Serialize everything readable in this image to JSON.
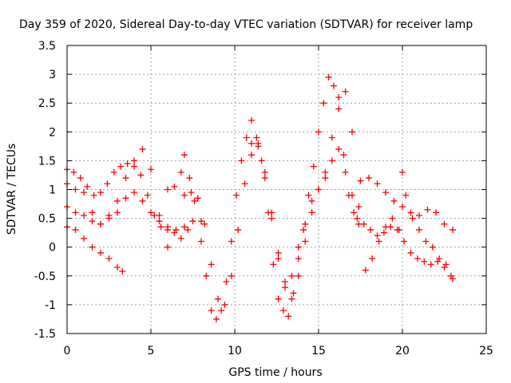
{
  "chart_data": {
    "type": "scatter",
    "title": "Day 359 of 2020, Sidereal Day-to-day VTEC variation (SDTVAR) for receiver lamp",
    "xlabel": "GPS time / hours",
    "ylabel": "SDTVAR / TECUs",
    "xlim": [
      0,
      25
    ],
    "ylim": [
      -1.5,
      3.5
    ],
    "x_ticks": [
      0,
      5,
      10,
      15,
      20,
      25
    ],
    "y_ticks": [
      -1.5,
      -1,
      -0.5,
      0,
      0.5,
      1,
      1.5,
      2,
      2.5,
      3,
      3.5
    ],
    "x_tick_labels": [
      "0",
      "5",
      "10",
      "15",
      "20",
      "25"
    ],
    "y_tick_labels": [
      "-1.5",
      "-1",
      "-0.5",
      "0",
      "0.5",
      "1",
      "1.5",
      "2",
      "2.5",
      "3",
      "3.5"
    ],
    "grid": true,
    "marker": "+",
    "color": "#ff0000",
    "series": [
      {
        "x": [
          0.0,
          0.4,
          0.8,
          1.2,
          1.6,
          2.0,
          2.4,
          2.8,
          3.2,
          3.6,
          4.0,
          4.4,
          4.8,
          5.2,
          5.6,
          6.0,
          6.4,
          6.8,
          7.2
        ],
        "y": [
          1.35,
          1.3,
          1.2,
          1.05,
          0.9,
          0.95,
          1.1,
          1.3,
          1.4,
          1.45,
          1.5,
          1.25,
          0.9,
          0.55,
          0.35,
          0.3,
          0.25,
          0.15,
          0.3
        ]
      },
      {
        "x": [
          0.0,
          0.5,
          1.0,
          1.5,
          2.0,
          2.5,
          3.0,
          3.5,
          4.0,
          4.5,
          5.0,
          5.5,
          6.0
        ],
        "y": [
          1.1,
          1.0,
          0.95,
          0.6,
          0.4,
          0.55,
          0.8,
          1.2,
          1.4,
          1.7,
          1.35,
          0.55,
          0.0
        ]
      },
      {
        "x": [
          0.0,
          0.5,
          1.0,
          1.5,
          2.0,
          2.5,
          3.0,
          3.3
        ],
        "y": [
          0.35,
          0.3,
          0.15,
          0.0,
          -0.1,
          -0.2,
          -0.35,
          -0.42
        ]
      },
      {
        "x": [
          0.0,
          0.5,
          1.0,
          1.5,
          2.0,
          2.5,
          3.0,
          3.5,
          4.0,
          4.5,
          5.0,
          5.5,
          6.0,
          6.5,
          7.0,
          7.5,
          8.0
        ],
        "y": [
          0.7,
          0.6,
          0.55,
          0.45,
          0.4,
          0.5,
          0.6,
          0.85,
          0.95,
          0.8,
          0.6,
          0.45,
          0.35,
          0.3,
          0.35,
          0.45,
          0.45
        ]
      },
      {
        "x": [
          6.0,
          6.4,
          6.8,
          7.0,
          7.3,
          7.6,
          8.0,
          8.3,
          8.6,
          8.9,
          9.2,
          9.5,
          9.8,
          10.1,
          10.4,
          10.7,
          11.0,
          11.3,
          11.6,
          12.0,
          12.3,
          12.6,
          12.9,
          13.2,
          13.5,
          13.8,
          14.1,
          14.4,
          14.7,
          15.0,
          15.3,
          15.6,
          15.9,
          16.2,
          16.5,
          16.8,
          17.1,
          17.4
        ],
        "y": [
          1.0,
          1.05,
          1.3,
          1.6,
          1.2,
          0.8,
          0.1,
          -0.5,
          -1.1,
          -1.25,
          -1.1,
          -0.6,
          0.1,
          0.9,
          1.5,
          1.9,
          2.2,
          1.9,
          1.5,
          0.6,
          -0.3,
          -0.9,
          -1.1,
          -1.2,
          -0.8,
          -0.2,
          0.3,
          0.9,
          1.4,
          2.0,
          2.5,
          2.95,
          2.8,
          2.4,
          1.6,
          0.9,
          0.6,
          0.4
        ]
      },
      {
        "x": [
          7.0,
          7.4,
          7.8,
          8.2,
          8.6,
          9.0,
          9.4,
          9.8,
          10.2,
          10.6,
          11.0,
          11.4,
          11.8,
          12.2,
          12.6,
          13.0,
          13.4,
          13.8,
          14.2,
          14.6,
          15.0,
          15.4,
          15.8,
          16.2,
          16.6,
          17.0,
          17.4
        ],
        "y": [
          0.9,
          0.95,
          0.85,
          0.4,
          -0.3,
          -0.9,
          -1.0,
          -0.5,
          0.3,
          1.1,
          1.6,
          1.8,
          1.3,
          0.6,
          -0.1,
          -0.6,
          -0.5,
          0.0,
          0.4,
          0.8,
          1.0,
          1.2,
          1.5,
          1.7,
          1.3,
          0.9,
          0.7
        ]
      },
      {
        "x": [
          11.0,
          11.4,
          11.8,
          12.2,
          12.6,
          13.0,
          13.4,
          13.8,
          14.2,
          14.6,
          15.0,
          15.4,
          15.8,
          16.2,
          16.6,
          17.0
        ],
        "y": [
          1.8,
          1.75,
          1.2,
          0.5,
          -0.2,
          -0.7,
          -0.9,
          -0.5,
          0.1,
          0.6,
          1.0,
          1.3,
          1.9,
          2.6,
          2.7,
          2.0
        ]
      },
      {
        "x": [
          17.5,
          18.0,
          18.5,
          19.0,
          19.5,
          20.0,
          20.5,
          21.0,
          21.5,
          22.0,
          22.5,
          23.0
        ],
        "y": [
          1.15,
          1.2,
          1.1,
          0.95,
          0.8,
          0.7,
          0.6,
          0.55,
          0.65,
          0.6,
          0.4,
          0.3
        ]
      },
      {
        "x": [
          17.3,
          17.7,
          18.1,
          18.5,
          18.9,
          19.3,
          19.7,
          20.1,
          20.5,
          20.9,
          21.3,
          21.7,
          22.1,
          22.5,
          22.9
        ],
        "y": [
          0.5,
          0.4,
          0.3,
          0.2,
          0.25,
          0.35,
          0.3,
          0.1,
          -0.1,
          -0.2,
          -0.25,
          -0.3,
          -0.25,
          -0.35,
          -0.5
        ]
      },
      {
        "x": [
          17.8,
          18.2,
          18.6,
          19.0,
          19.4,
          19.8,
          20.0,
          20.2,
          20.6,
          21.0,
          21.4,
          21.8,
          22.2,
          22.6,
          23.0
        ],
        "y": [
          -0.4,
          -0.2,
          0.1,
          0.35,
          0.5,
          0.3,
          1.3,
          0.9,
          0.5,
          0.3,
          0.1,
          0.0,
          -0.2,
          -0.3,
          -0.55
        ]
      }
    ]
  }
}
